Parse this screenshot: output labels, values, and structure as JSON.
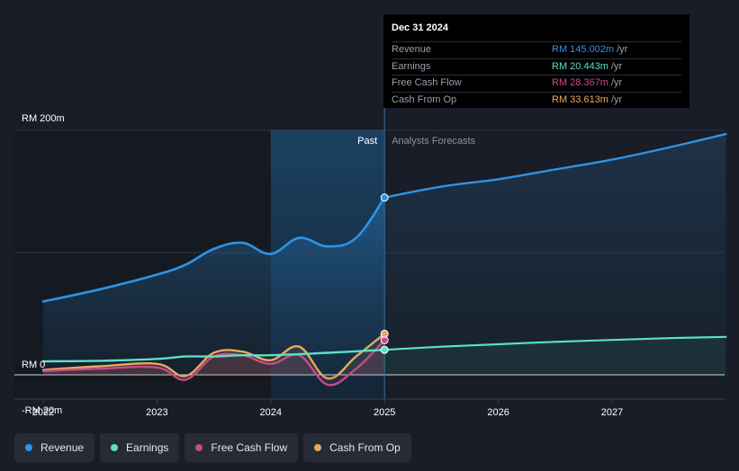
{
  "chart_data": {
    "type": "line",
    "title": "",
    "y_unit": "RM m",
    "ylim": [
      -20,
      200
    ],
    "xlim": [
      2022.0,
      2028.0
    ],
    "y_tick_labels": [
      {
        "value": 200,
        "label": "RM 200m"
      },
      {
        "value": 0,
        "label": "RM 0"
      },
      {
        "value": -20,
        "label": "-RM 20m"
      }
    ],
    "x_ticks": [
      {
        "value": 2022,
        "label": "2022"
      },
      {
        "value": 2023,
        "label": "2023"
      },
      {
        "value": 2024,
        "label": "2024"
      },
      {
        "value": 2025,
        "label": "2025"
      },
      {
        "value": 2026,
        "label": "2026"
      },
      {
        "value": 2027,
        "label": "2027"
      }
    ],
    "past_label": "Past",
    "forecast_label": "Analysts Forecasts",
    "divider_x": 2025.0,
    "highlight_start_x": 2024.0,
    "series": [
      {
        "name": "Revenue",
        "color": "#2e93e6",
        "past": [
          [
            2022.0,
            60
          ],
          [
            2022.5,
            70
          ],
          [
            2023.0,
            82
          ],
          [
            2023.25,
            90
          ],
          [
            2023.5,
            103
          ],
          [
            2023.75,
            108
          ],
          [
            2024.0,
            99
          ],
          [
            2024.25,
            112
          ],
          [
            2024.5,
            105
          ],
          [
            2024.75,
            112
          ],
          [
            2025.0,
            145
          ]
        ],
        "forecast": [
          [
            2025.0,
            145
          ],
          [
            2025.5,
            154
          ],
          [
            2026.0,
            160
          ],
          [
            2026.5,
            168
          ],
          [
            2027.0,
            176
          ],
          [
            2027.5,
            186
          ],
          [
            2028.0,
            197
          ]
        ]
      },
      {
        "name": "Earnings",
        "color": "#5ce0c6",
        "past": [
          [
            2022.0,
            11
          ],
          [
            2022.5,
            11.5
          ],
          [
            2023.0,
            13
          ],
          [
            2023.25,
            15
          ],
          [
            2023.5,
            15
          ],
          [
            2023.75,
            16
          ],
          [
            2024.0,
            16
          ],
          [
            2024.5,
            18
          ],
          [
            2025.0,
            20.443
          ]
        ],
        "forecast": [
          [
            2025.0,
            20.443
          ],
          [
            2025.5,
            23
          ],
          [
            2026.0,
            25
          ],
          [
            2026.5,
            27
          ],
          [
            2027.0,
            28.5
          ],
          [
            2027.5,
            30
          ],
          [
            2028.0,
            31
          ]
        ]
      },
      {
        "name": "Free Cash Flow",
        "color": "#c74a8a",
        "past": [
          [
            2022.0,
            3
          ],
          [
            2022.5,
            5
          ],
          [
            2023.0,
            6
          ],
          [
            2023.25,
            -4
          ],
          [
            2023.5,
            15
          ],
          [
            2023.75,
            16
          ],
          [
            2024.0,
            9
          ],
          [
            2024.25,
            16
          ],
          [
            2024.5,
            -8
          ],
          [
            2024.75,
            5
          ],
          [
            2025.0,
            28.367
          ]
        ]
      },
      {
        "name": "Cash From Op",
        "color": "#e8a85e",
        "past": [
          [
            2022.0,
            4
          ],
          [
            2022.5,
            7
          ],
          [
            2023.0,
            9
          ],
          [
            2023.25,
            -1
          ],
          [
            2023.5,
            18
          ],
          [
            2023.75,
            19
          ],
          [
            2024.0,
            12
          ],
          [
            2024.25,
            23
          ],
          [
            2024.5,
            -3
          ],
          [
            2024.75,
            15
          ],
          [
            2025.0,
            33.613
          ]
        ]
      }
    ],
    "tooltip": {
      "date": "Dec 31 2024",
      "unit": "/yr",
      "rows": [
        {
          "name": "Revenue",
          "value": "RM 145.002m",
          "color": "#2e93e6"
        },
        {
          "name": "Earnings",
          "value": "RM 20.443m",
          "color": "#5ce0c6"
        },
        {
          "name": "Free Cash Flow",
          "value": "RM 28.367m",
          "color": "#c74a8a"
        },
        {
          "name": "Cash From Op",
          "value": "RM 33.613m",
          "color": "#e8a85e"
        }
      ]
    },
    "legend": [
      {
        "name": "Revenue",
        "color": "#2e93e6"
      },
      {
        "name": "Earnings",
        "color": "#5ce0c6"
      },
      {
        "name": "Free Cash Flow",
        "color": "#c74a8a"
      },
      {
        "name": "Cash From Op",
        "color": "#e8a85e"
      }
    ]
  }
}
